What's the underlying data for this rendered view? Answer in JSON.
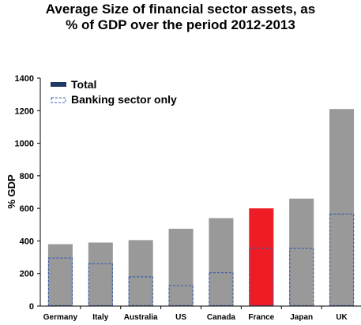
{
  "chart_data": {
    "type": "bar",
    "title_lines": [
      "Average Size of financial sector assets, as",
      "% of GDP over the period 2012-2013"
    ],
    "ylabel": "% GDP",
    "xlabel": "",
    "ylim": [
      0,
      1400
    ],
    "yticks": [
      0,
      200,
      400,
      600,
      800,
      1000,
      1200,
      1400
    ],
    "categories": [
      "Germany",
      "Italy",
      "Australia",
      "US",
      "Canada",
      "France",
      "Japan",
      "UK"
    ],
    "series": [
      {
        "name": "Total",
        "values": [
          380,
          390,
          405,
          475,
          540,
          600,
          660,
          1210
        ]
      },
      {
        "name": "Banking sector only",
        "values": [
          295,
          260,
          180,
          125,
          205,
          355,
          355,
          565
        ]
      }
    ],
    "highlight_category": "France",
    "colors": {
      "total": "#999999",
      "highlight": "#ee1c25",
      "banking_border": "#3b5fb0",
      "legend_total": "#1f3864"
    },
    "legend_position": "top-left",
    "grid": false
  }
}
